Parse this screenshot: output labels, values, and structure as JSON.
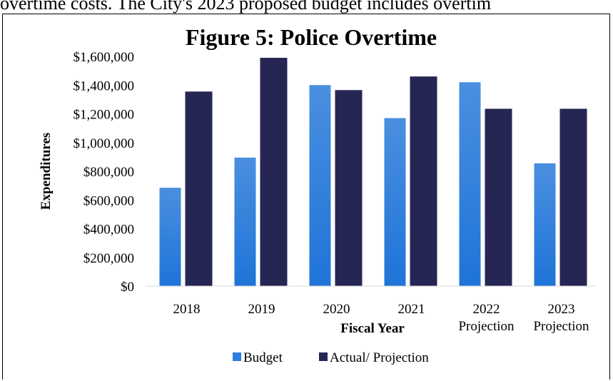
{
  "header_text": "overtime costs. The City's 2023 proposed budget includes overtim",
  "chart_data": {
    "type": "bar",
    "title": "Figure 5: Police Overtime",
    "xlabel": "Fiscal Year",
    "ylabel": "Expenditures",
    "ylim": [
      0,
      1600000
    ],
    "yticks": [
      "$0",
      "$200,000",
      "$400,000",
      "$600,000",
      "$800,000",
      "$1,000,000",
      "$1,200,000",
      "$1,400,000",
      "$1,600,000"
    ],
    "categories": [
      [
        "2018"
      ],
      [
        "2019"
      ],
      [
        "2020"
      ],
      [
        "2021"
      ],
      [
        "2022",
        "Projection"
      ],
      [
        "2023",
        "Projection"
      ]
    ],
    "series": [
      {
        "name": "Budget",
        "color": "#2b7de0",
        "values": [
          685000,
          895000,
          1400000,
          1170000,
          1420000,
          855000
        ]
      },
      {
        "name": "Actual/ Projection",
        "color": "#262654",
        "values": [
          1355000,
          1590000,
          1365000,
          1460000,
          1235000,
          1235000
        ]
      }
    ],
    "legend_position": "bottom",
    "grid": false
  }
}
